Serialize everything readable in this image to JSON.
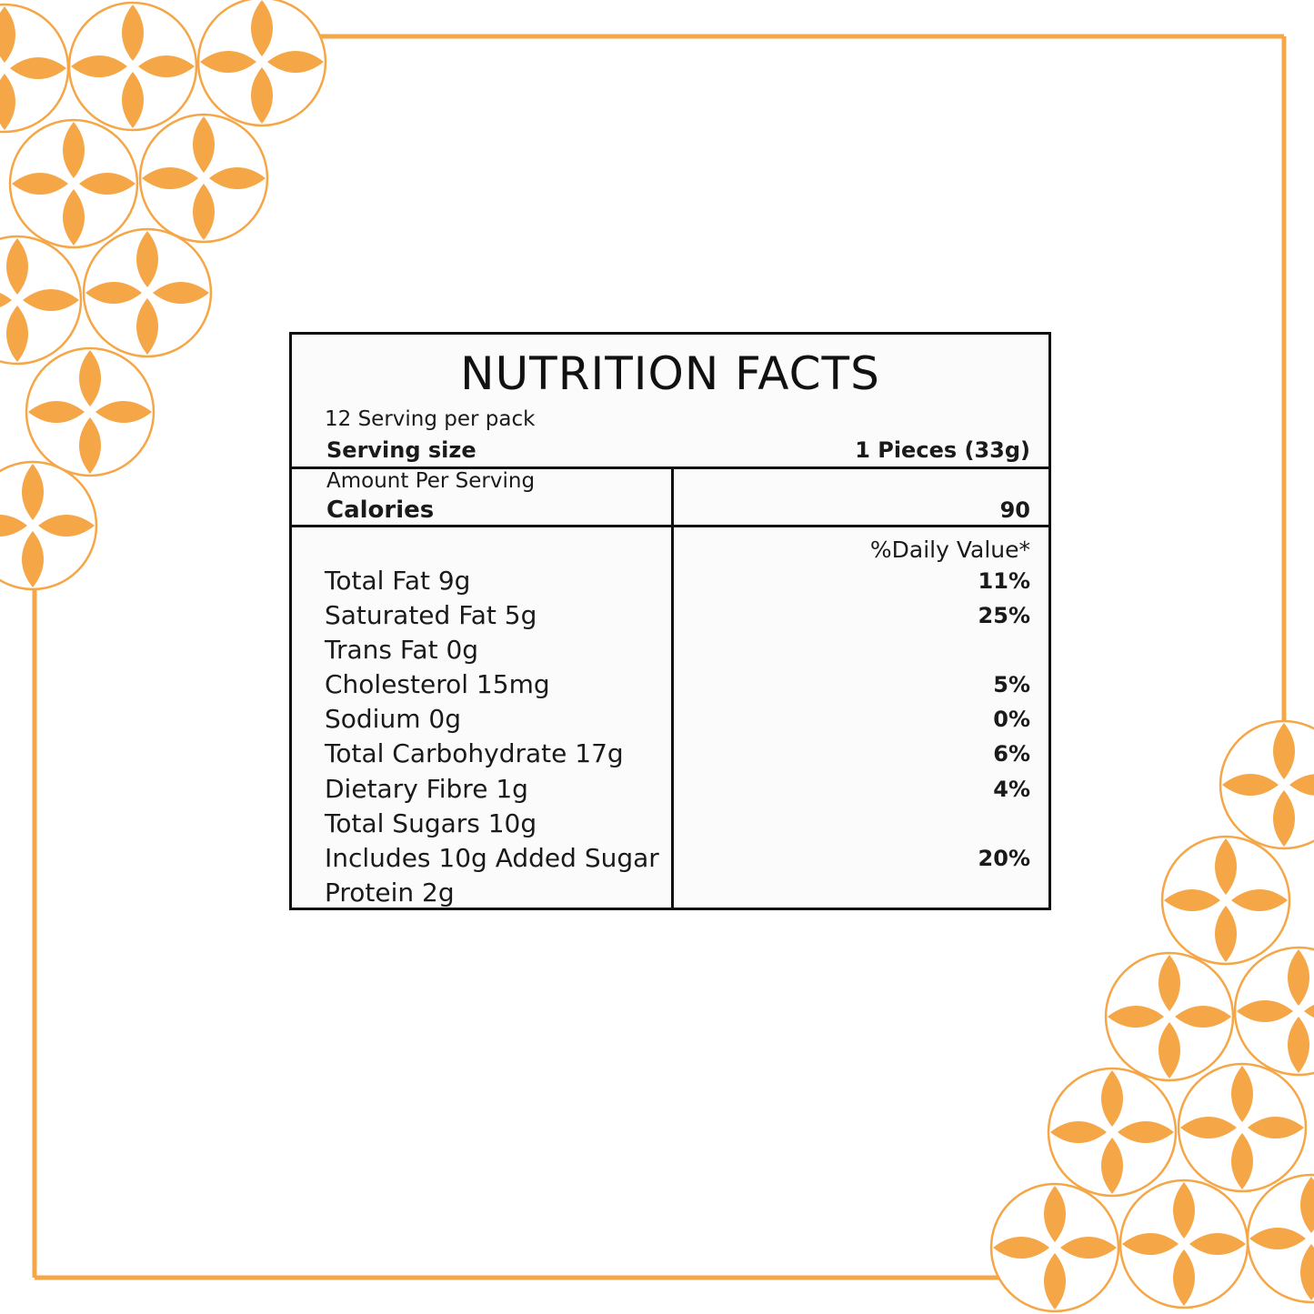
{
  "colors": {
    "accent": "#f5a647",
    "rule": "#111111"
  },
  "label": {
    "title": "NUTRITION FACTS",
    "servings_per_pack": "12 Serving per pack",
    "serving_size_label": "Serving size",
    "serving_size_value": "1 Pieces (33g)",
    "amount_per_serving": "Amount Per Serving",
    "calories_label": "Calories",
    "calories_value": "90",
    "daily_value_header": "%Daily Value*",
    "nutrients": [
      {
        "name": "Total Fat 9g",
        "dv": "11%"
      },
      {
        "name": "Saturated Fat 5g",
        "dv": "25%"
      },
      {
        "name": "Trans Fat 0g",
        "dv": ""
      },
      {
        "name": "Cholesterol 15mg",
        "dv": "5%"
      },
      {
        "name": "Sodium 0g",
        "dv": "0%"
      },
      {
        "name": "Total Carbohydrate 17g",
        "dv": "6%"
      },
      {
        "name": "Dietary Fibre 1g",
        "dv": "4%"
      },
      {
        "name": "Total Sugars 10g",
        "dv": ""
      },
      {
        "name": "Includes 10g Added Sugar",
        "dv": "20%"
      },
      {
        "name": "Protein 2g",
        "dv": ""
      }
    ]
  }
}
